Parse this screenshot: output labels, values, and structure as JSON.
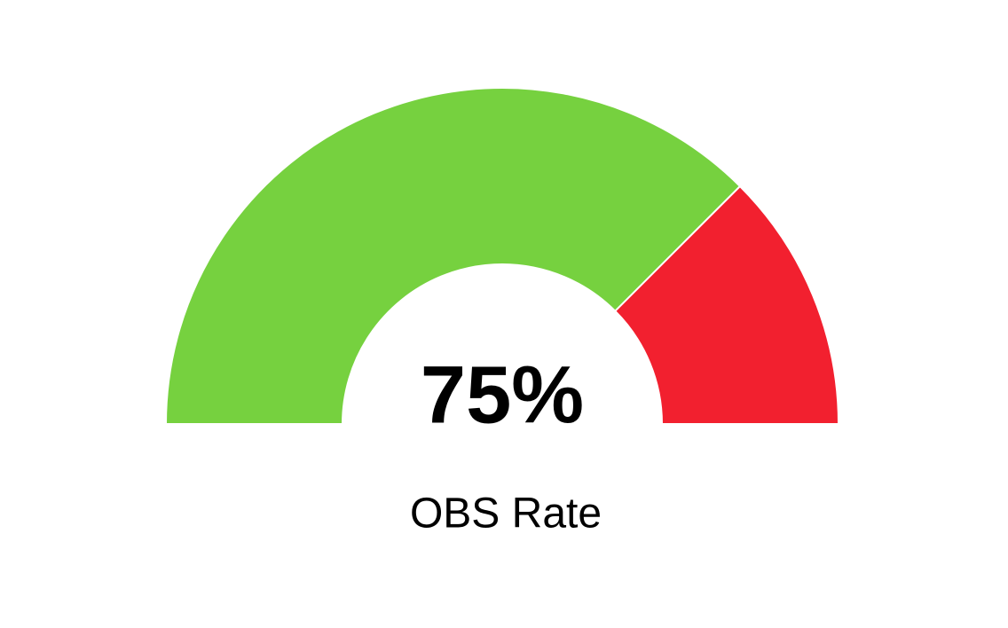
{
  "chart_data": {
    "type": "gauge",
    "values": [
      75
    ],
    "value_labels": [
      "75%"
    ],
    "label": "OBS Rate",
    "ylim": [
      0,
      100
    ],
    "colors": [
      "#76d13f",
      "#f2202f"
    ]
  }
}
